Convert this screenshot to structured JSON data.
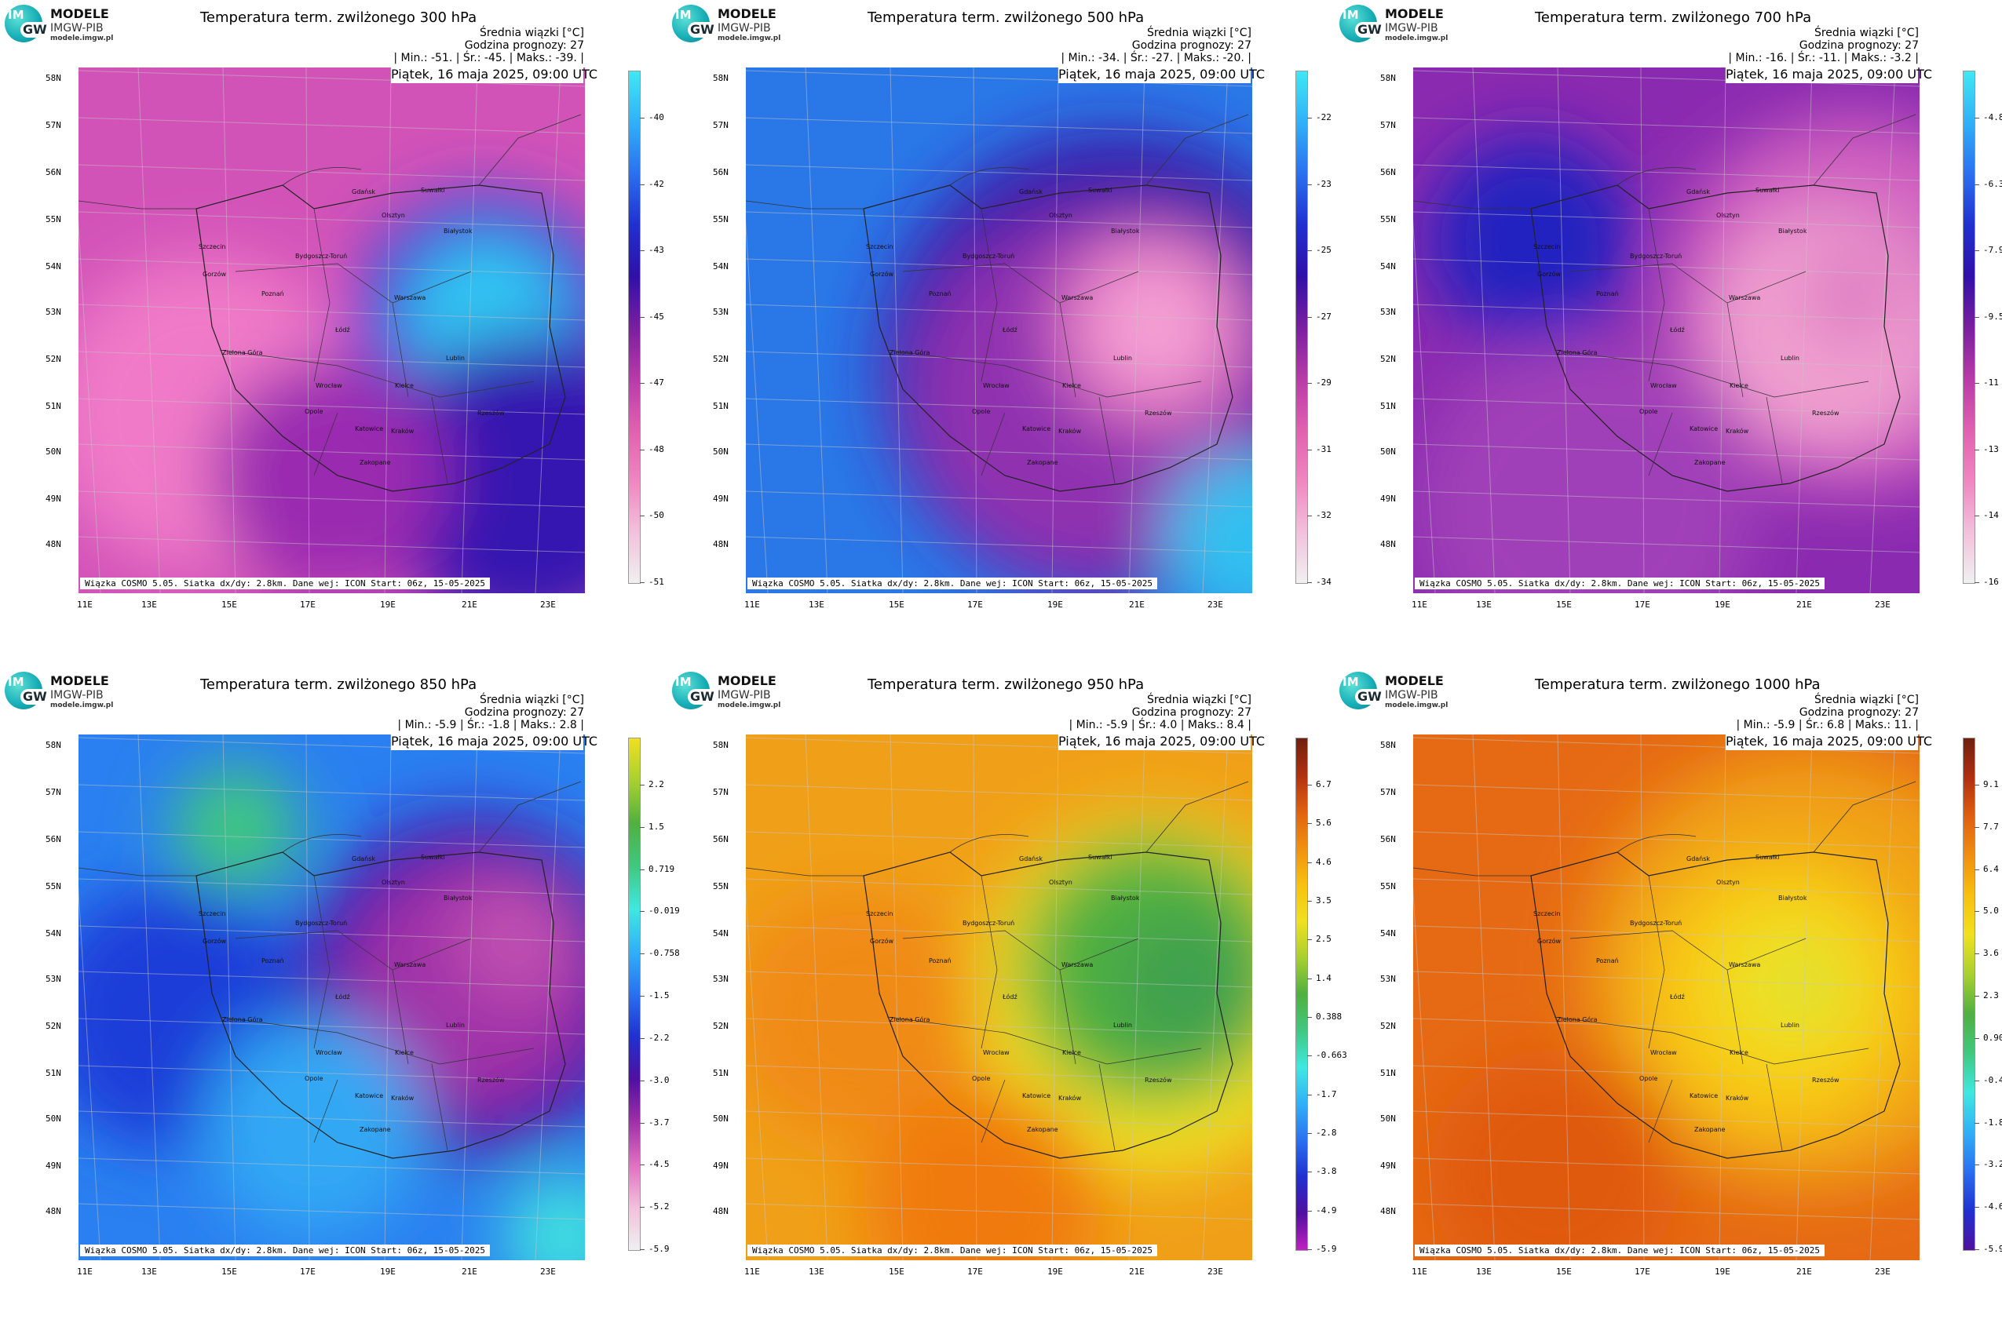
{
  "logo": {
    "im": "IM",
    "gw": "GW",
    "line1": "MODELE",
    "line2": "IMGW-PIB",
    "line3": "modele.imgw.pl"
  },
  "common": {
    "subtitle": "Średnia wiązki [°C]",
    "forecast_hour": "Godzina prognozy: 27",
    "date": "Piątek, 16 maja 2025, 09:00 UTC",
    "footer": "Wiązka COSMO 5.05. Siatka dx/dy: 2.8km. Dane wej: ICON Start: 06z, 15-05-2025",
    "lat_labels": [
      "58N",
      "57N",
      "56N",
      "55N",
      "54N",
      "53N",
      "52N",
      "51N",
      "50N",
      "49N",
      "48N"
    ],
    "lon_labels": [
      "11E",
      "13E",
      "15E",
      "17E",
      "19E",
      "21E",
      "23E"
    ],
    "cities": [
      "Gdańsk",
      "Olsztyn",
      "Suwałki",
      "Białystok",
      "Szczecin",
      "Bydgoszcz-Toruń",
      "Gorzów",
      "Poznań",
      "Warszawa",
      "Łódź",
      "Zielona Góra",
      "Lublin",
      "Wrocław",
      "Kielce",
      "Opole",
      "Rzeszów",
      "Katowice",
      "Kraków",
      "Zakopane"
    ]
  },
  "panels": [
    {
      "title": "Temperatura term. zwilżonego 300 hPa",
      "stats": "| Min.: -51. | Śr.: -45. | Maks.: -39. |",
      "ticks": [
        "-40",
        "-42",
        "-43",
        "-45",
        "-47",
        "-48",
        "-50",
        "-51"
      ],
      "colors": [
        "#f0f0f0",
        "#f2c0dc",
        "#f086c0",
        "#e060b0",
        "#b83aa8",
        "#7a1ea0",
        "#3010a8",
        "#2030d0",
        "#2a70f0",
        "#30b0f8",
        "#40e8f4"
      ],
      "field_desc": "magenta-west-blue-core"
    },
    {
      "title": "Temperatura term. zwilżonego 500 hPa",
      "stats": "| Min.: -34. | Śr.: -27. | Maks.: -20. |",
      "ticks": [
        "-22",
        "-23",
        "-25",
        "-27",
        "-29",
        "-31",
        "-32",
        "-34"
      ],
      "colors": [
        "#f0f0f0",
        "#f2c0dc",
        "#f086c0",
        "#e060b0",
        "#b83aa8",
        "#7a1ea0",
        "#3010a8",
        "#2030d0",
        "#2a70f0",
        "#30b0f8",
        "#40e8f4"
      ],
      "field_desc": "blue-edge-pink-core"
    },
    {
      "title": "Temperatura term. zwilżonego 700 hPa",
      "stats": "| Min.: -16. | Śr.: -11. | Maks.: -3.2 |",
      "ticks": [
        "-4.8",
        "-6.3",
        "-7.9",
        "-9.5",
        "-11",
        "-13",
        "-14",
        "-16"
      ],
      "colors": [
        "#f0f0f0",
        "#f2c0dc",
        "#f086c0",
        "#e060b0",
        "#b83aa8",
        "#7a1ea0",
        "#3010a8",
        "#2030d0",
        "#2a70f0",
        "#30b0f8",
        "#40e8f4"
      ],
      "field_desc": "purple-pink-swirl"
    },
    {
      "title": "Temperatura term. zwilżonego 850 hPa",
      "stats": "| Min.: -5.9 | Śr.: -1.8 | Maks.: 2.8 |",
      "ticks": [
        "2.2",
        "1.5",
        "0.719",
        "-0.019",
        "-0.758",
        "-1.5",
        "-2.2",
        "-3.0",
        "-3.7",
        "-4.5",
        "-5.2",
        "-5.9"
      ],
      "colors": [
        "#f0f0f0",
        "#f2c0dc",
        "#e070c0",
        "#a030a8",
        "#5010a0",
        "#2030d0",
        "#2a70f0",
        "#30b0f8",
        "#40e8e0",
        "#40c880",
        "#50b040",
        "#a8d030",
        "#f0e020"
      ],
      "field_desc": "blue-west-purple-swirl"
    },
    {
      "title": "Temperatura term. zwilżonego 950 hPa",
      "stats": "| Min.: -5.9 | Śr.: 4.0 | Maks.: 8.4 |",
      "ticks": [
        "6.7",
        "5.6",
        "4.6",
        "3.5",
        "2.5",
        "1.4",
        "0.388",
        "-0.663",
        "-1.7",
        "-2.8",
        "-3.8",
        "-4.9",
        "-5.9"
      ],
      "colors": [
        "#c020c0",
        "#5010a0",
        "#2030d0",
        "#2a70f0",
        "#30b0f8",
        "#40e8e0",
        "#40c880",
        "#50b040",
        "#a8d030",
        "#f0e020",
        "#f8c010",
        "#f09010",
        "#e06010",
        "#b03010",
        "#702010"
      ],
      "field_desc": "orange-green-core"
    },
    {
      "title": "Temperatura term. zwilżonego 1000 hPa",
      "stats": "| Min.: -5.9 | Śr.: 6.8 | Maks.: 11. |",
      "ticks": [
        "9.1",
        "7.7",
        "6.4",
        "5.0",
        "3.6",
        "2.3",
        "0.905",
        "-0.459",
        "-1.8",
        "-3.2",
        "-4.6",
        "-5.9"
      ],
      "colors": [
        "#5010a0",
        "#2030d0",
        "#2a70f0",
        "#30b0f8",
        "#40e8e0",
        "#40c880",
        "#50b040",
        "#a8d030",
        "#f0e020",
        "#f8c010",
        "#f09010",
        "#e06010",
        "#b03010",
        "#702010"
      ],
      "field_desc": "orange-yellow-core"
    }
  ]
}
